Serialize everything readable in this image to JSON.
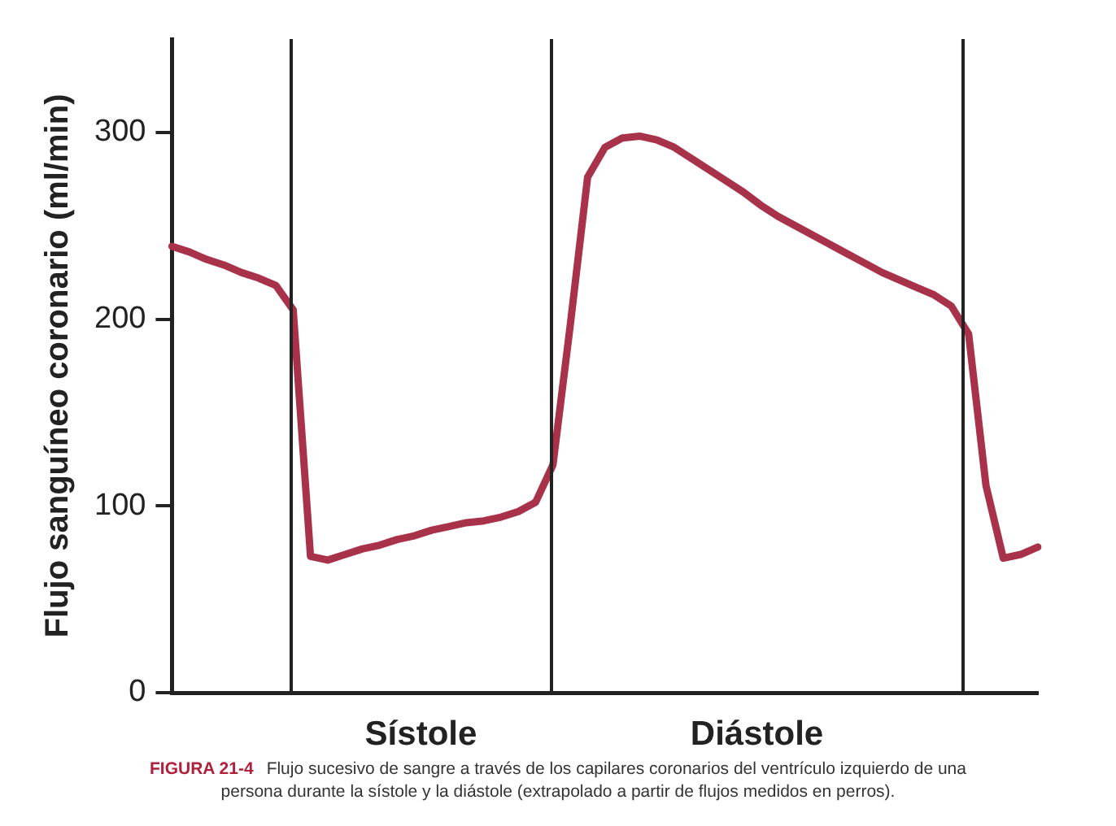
{
  "chart_data": {
    "type": "line",
    "ylabel": "Flujo sanguíneo coronario (ml/min)",
    "categories": [
      null,
      null,
      null,
      null,
      null,
      null,
      null,
      null,
      null,
      null,
      null,
      null,
      null,
      null,
      null,
      null,
      null,
      null,
      null,
      null,
      null,
      null,
      null,
      null,
      null,
      null,
      null,
      null,
      null,
      null,
      null,
      null,
      null,
      null,
      null,
      null,
      null,
      null,
      null,
      null,
      null,
      null,
      null,
      null,
      null,
      null,
      null,
      null,
      null,
      null,
      null
    ],
    "series": [
      {
        "color": "#a8324a",
        "values": [
          239,
          236,
          232,
          229,
          225,
          222,
          218,
          205,
          73,
          71,
          74,
          77,
          79,
          82,
          84,
          87,
          89,
          91,
          92,
          94,
          97,
          102,
          122,
          197,
          276,
          292,
          297,
          298,
          296,
          292,
          286,
          280,
          274,
          268,
          261,
          255,
          250,
          245,
          240,
          235,
          230,
          225,
          221,
          217,
          213,
          207,
          192,
          111,
          72,
          74,
          78
        ]
      }
    ],
    "ylim": [
      0,
      350
    ],
    "yticks": [
      0,
      100,
      200,
      300
    ],
    "tick_labels": "y",
    "grid": false,
    "legend": false,
    "marker": "none",
    "line_style": "solid",
    "annotations": [
      "Sístole",
      "Diástole",
      "FIGURA 21-4",
      "Flujo sucesivo de sangre a través de los capilares coronarios del ventrículo izquierdo de una persona durante la sístole y la diástole (extrapolado a partir de flujos medidos en perros)."
    ]
  }
}
